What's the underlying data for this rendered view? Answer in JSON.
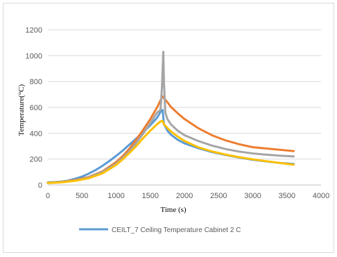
{
  "chart_data": {
    "type": "line",
    "title": "",
    "xlabel": "Time (s)",
    "ylabel": "Temperature(°C)",
    "xlim": [
      0,
      4000
    ],
    "ylim": [
      0,
      1200
    ],
    "xticks": [
      0,
      500,
      1000,
      1500,
      2000,
      2500,
      3000,
      3500,
      4000
    ],
    "yticks": [
      0,
      200,
      400,
      600,
      800,
      1000,
      1200
    ],
    "grid": true,
    "legend": "bottom",
    "series": [
      {
        "name": "CEILT_7 Ceiling Temperature Cabinet  2 C",
        "color": "#5b9bd5",
        "x": [
          0,
          100,
          200,
          300,
          400,
          500,
          600,
          700,
          800,
          900,
          1000,
          1100,
          1200,
          1300,
          1400,
          1500,
          1600,
          1650,
          1680,
          1700,
          1750,
          1800,
          1900,
          2000,
          2200,
          2400,
          2600,
          2800,
          3000,
          3200,
          3400,
          3600
        ],
        "y": [
          20,
          22,
          26,
          34,
          48,
          65,
          88,
          115,
          148,
          185,
          225,
          268,
          315,
          362,
          410,
          462,
          520,
          565,
          580,
          470,
          420,
          390,
          350,
          322,
          285,
          255,
          232,
          212,
          195,
          182,
          170,
          162
        ]
      },
      {
        "name": "",
        "color": "#ed7d31",
        "x": [
          0,
          200,
          400,
          600,
          800,
          1000,
          1100,
          1200,
          1300,
          1400,
          1500,
          1600,
          1650,
          1680,
          1700,
          1750,
          1800,
          1900,
          2000,
          2200,
          2400,
          2600,
          2800,
          3000,
          3200,
          3400,
          3600
        ],
        "y": [
          18,
          24,
          38,
          62,
          105,
          178,
          225,
          285,
          355,
          430,
          510,
          600,
          655,
          685,
          670,
          640,
          605,
          555,
          510,
          440,
          385,
          345,
          315,
          292,
          282,
          272,
          262
        ]
      },
      {
        "name": "",
        "color": "#a5a5a5",
        "x": [
          0,
          200,
          400,
          600,
          800,
          1000,
          1100,
          1200,
          1300,
          1400,
          1500,
          1600,
          1650,
          1670,
          1690,
          1700,
          1720,
          1750,
          1800,
          1900,
          2000,
          2200,
          2400,
          2600,
          2800,
          3000,
          3200,
          3400,
          3600
        ],
        "y": [
          18,
          23,
          35,
          58,
          100,
          165,
          210,
          265,
          330,
          400,
          480,
          560,
          580,
          750,
          1030,
          800,
          560,
          510,
          470,
          420,
          385,
          340,
          305,
          278,
          258,
          244,
          234,
          226,
          220
        ]
      },
      {
        "name": "",
        "color": "#ffc000",
        "x": [
          0,
          200,
          400,
          600,
          800,
          1000,
          1100,
          1200,
          1300,
          1400,
          1500,
          1600,
          1650,
          1680,
          1700,
          1750,
          1800,
          1900,
          2000,
          2200,
          2400,
          2600,
          2800,
          3000,
          3200,
          3400,
          3600
        ],
        "y": [
          15,
          20,
          32,
          52,
          90,
          155,
          200,
          250,
          305,
          365,
          420,
          470,
          492,
          495,
          470,
          440,
          415,
          375,
          340,
          292,
          260,
          235,
          215,
          198,
          184,
          170,
          157
        ]
      }
    ]
  }
}
